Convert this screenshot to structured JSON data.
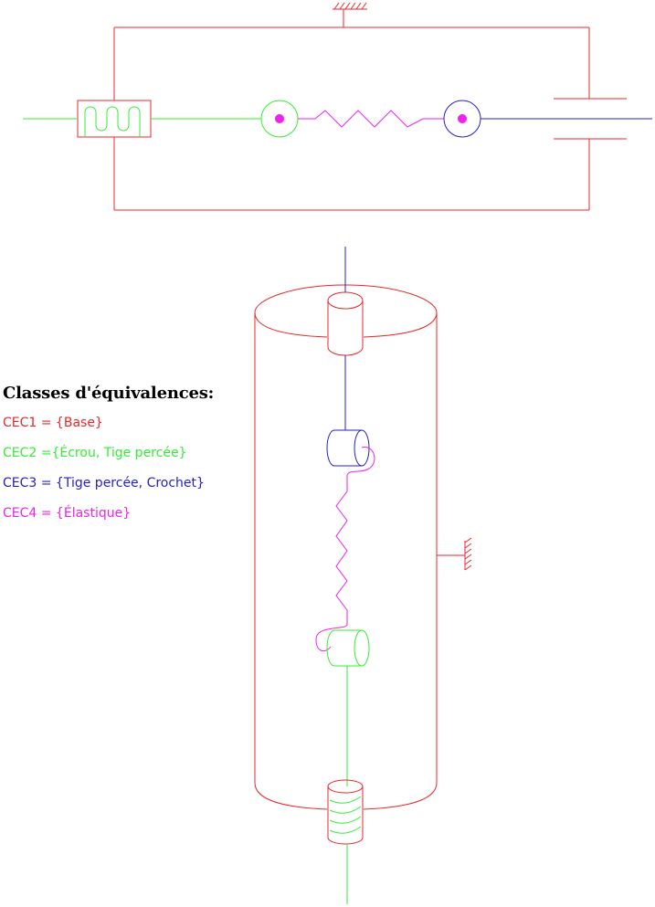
{
  "colors": {
    "cec1": "#e8282a",
    "cec2": "#33ee33",
    "cec3": "#2222cc",
    "cec4": "#ee22ee"
  },
  "legend": {
    "title": "Classes d'équivalences:",
    "items": [
      {
        "label": "CEC1 = {Base}",
        "color": "#e8282a"
      },
      {
        "label": "CEC2 ={Écrou, Tige percée}",
        "color": "#33ee33"
      },
      {
        "label": "CEC3 = {Tige percée, Crochet}",
        "color": "#2222cc"
      },
      {
        "label": "CEC4 = {Élastique}",
        "color": "#ee22ee"
      }
    ]
  }
}
